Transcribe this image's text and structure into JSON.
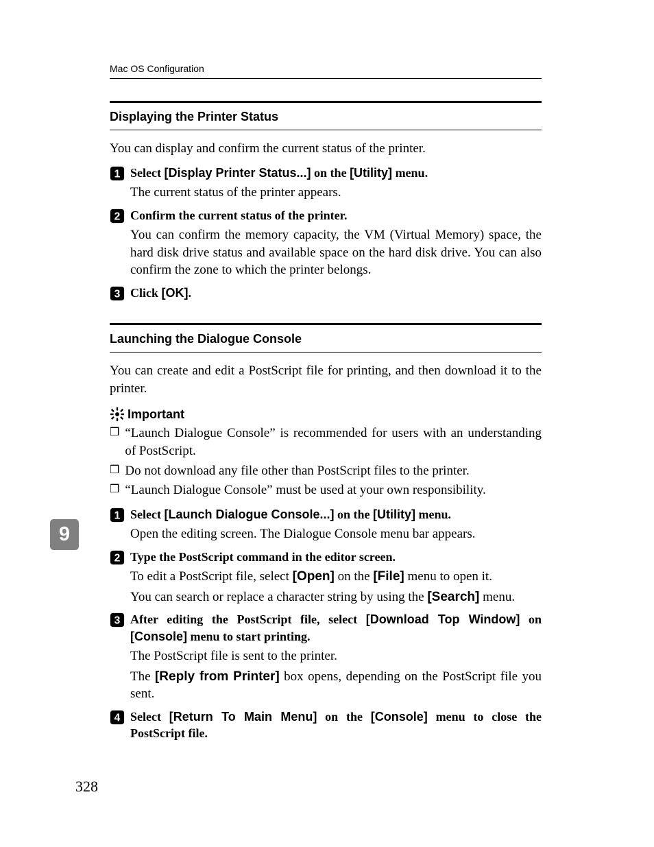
{
  "chapter_tab": "9",
  "page_number": "328",
  "running_head": "Mac OS Configuration",
  "section1": {
    "title": "Displaying the Printer Status",
    "lead": "You can display and confirm the current status of the printer.",
    "steps": [
      {
        "num": "1",
        "head_prefix": "Select ",
        "head_ui": "[Display Printer Status...]",
        "head_mid": " on the ",
        "head_ui2": "[Utility]",
        "head_suffix": " menu.",
        "body": [
          "The current status of the printer appears."
        ]
      },
      {
        "num": "2",
        "head_plain": "Confirm the current status of the printer.",
        "body": [
          "You can confirm the memory capacity, the VM (Virtual Memory) space, the hard disk drive status and available space on the hard disk drive. You can also confirm the zone to which the printer belongs."
        ]
      },
      {
        "num": "3",
        "head_prefix": "Click ",
        "head_ui": "[OK]",
        "head_suffix": ".",
        "body": []
      }
    ]
  },
  "section2": {
    "title": "Launching the Dialogue Console",
    "lead": "You can create and edit a PostScript file for printing, and then download it to the printer.",
    "important_label": "Important",
    "bullets": [
      "“Launch Dialogue Console” is recommended for users with an understanding of PostScript.",
      "Do not download any file other than PostScript files to the printer.",
      "“Launch Dialogue Console” must be used at your own responsibility."
    ],
    "steps": [
      {
        "num": "1",
        "head_prefix": "Select ",
        "head_ui": "[Launch Dialogue Console...]",
        "head_mid": " on the ",
        "head_ui2": "[Utility]",
        "head_suffix": " menu.",
        "body": [
          "Open the editing screen. The Dialogue Console menu bar appears."
        ]
      },
      {
        "num": "2",
        "head_plain": "Type the PostScript command in the editor screen.",
        "body_rich": [
          {
            "pre": "To edit a PostScript file, select ",
            "ui": "[Open]",
            "mid": " on the ",
            "ui2": "[File]",
            "post": " menu to open it."
          },
          {
            "pre": "You can search or replace a character string by using the ",
            "ui": "[Search]",
            "post": " menu."
          }
        ]
      },
      {
        "num": "3",
        "head_prefix": "After editing the PostScript file, select ",
        "head_ui": "[Download Top Window]",
        "head_mid": " on ",
        "head_ui2": "[Console]",
        "head_suffix": " menu to start printing.",
        "body_rich": [
          {
            "pre": "The PostScript file is sent to the printer."
          },
          {
            "pre": "The ",
            "ui": "[Reply from Printer]",
            "post": " box opens, depending on the PostScript file you sent."
          }
        ]
      },
      {
        "num": "4",
        "head_prefix": "Select ",
        "head_ui": "[Return To Main Menu]",
        "head_mid": " on the ",
        "head_ui2": "[Console]",
        "head_suffix": " menu to close the PostScript file.",
        "body": []
      }
    ]
  }
}
